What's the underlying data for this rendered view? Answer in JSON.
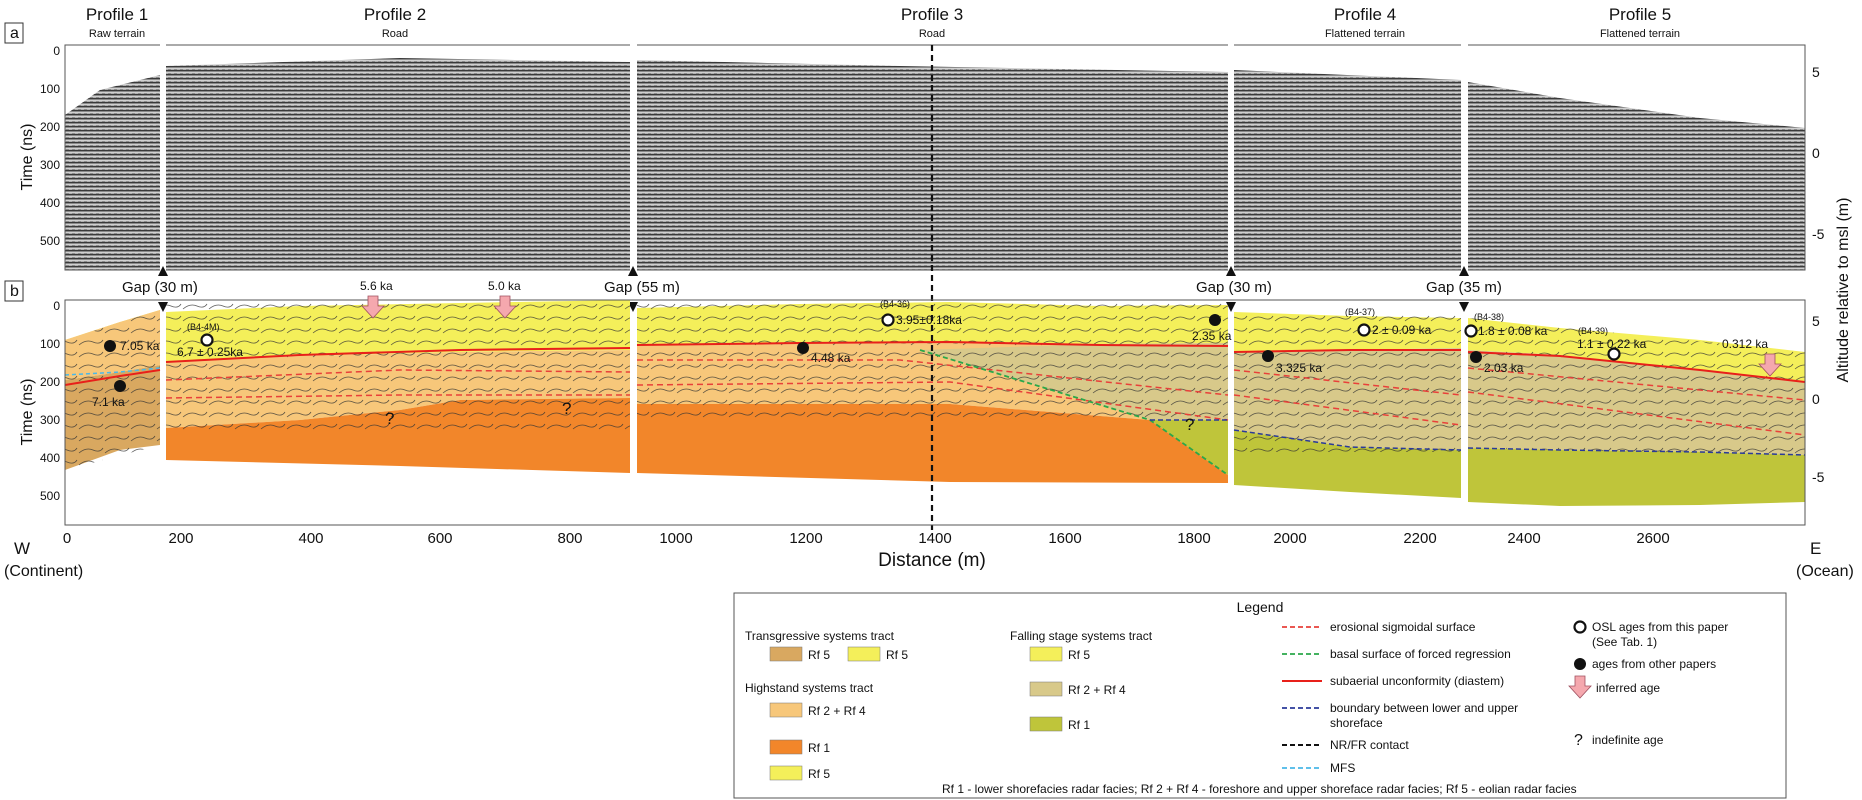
{
  "panel_labels": {
    "a": "a",
    "b": "b"
  },
  "profiles": [
    {
      "title": "Profile 1",
      "subtitle": "Raw terrain"
    },
    {
      "title": "Profile 2",
      "subtitle": "Road"
    },
    {
      "title": "Profile 3",
      "subtitle": "Road"
    },
    {
      "title": "Profile 4",
      "subtitle": "Flattened terrain"
    },
    {
      "title": "Profile 5",
      "subtitle": "Flattened terrain"
    }
  ],
  "gaps": [
    "Gap (30 m)",
    "Gap (55 m)",
    "Gap (30 m)",
    "Gap (35 m)"
  ],
  "axes": {
    "time_label": "Time (ns)",
    "altitude_label": "Altitude relative to msl (m)",
    "distance_label": "Distance (m)",
    "west_label": "W",
    "west_sub": "(Continent)",
    "east_label": "E",
    "east_sub": "(Ocean)",
    "time_ticks": [
      "0",
      "100",
      "200",
      "300",
      "400",
      "500"
    ],
    "alt_ticks": [
      "5",
      "0",
      "-5"
    ],
    "distance_ticks": [
      "0",
      "200",
      "400",
      "600",
      "800",
      "1000",
      "1200",
      "1400",
      "1600",
      "1800",
      "2000",
      "2200",
      "2400",
      "2600"
    ]
  },
  "ages": {
    "a1": "7.05 ka",
    "a2": "7.1 ka",
    "a3_id": "(B4-4M)",
    "a3": "6.7 ± 0.25ka",
    "a4": "5.6 ka",
    "a5": "5.0 ka",
    "a6": "4.48 ka",
    "a7_id": "(B4-36)",
    "a7": "3.95±0.18ka",
    "a8": "2.35 ka",
    "a9": "3.325 ka",
    "a10_id": "(B4-37)",
    "a10": "2 ± 0.09 ka",
    "a11_id": "(B4-38)",
    "a11": "1.8 ± 0.08 ka",
    "a12": "2.03 ka",
    "a13_id": "(B4-39)",
    "a13": "1.1 ± 0.22 ka",
    "a14": "0.312 ka",
    "q": "?"
  },
  "legend": {
    "title": "Legend",
    "tst": "Transgressive systems tract",
    "tst_rf5a": "Rf 5",
    "tst_rf5b": "Rf 5",
    "hst": "Highstand systems tract",
    "hst_rf24": "Rf 2 + Rf 4",
    "hst_rf1": "Rf 1",
    "hst_rf5": "Rf 5",
    "fsst": "Falling stage systems tract",
    "fsst_rf5": "Rf 5",
    "fsst_rf24": "Rf 2 + Rf 4",
    "fsst_rf1": "Rf 1",
    "l1": "erosional sigmoidal surface",
    "l2": "basal surface of forced regression",
    "l3": "subaerial unconformity (diastem)",
    "l4a": "boundary between lower and upper",
    "l4b": "shoreface",
    "l5": "NR/FR contact",
    "l6": "MFS",
    "s1a": "OSL ages from this paper",
    "s1b": "(See Tab. 1)",
    "s2": "ages from other papers",
    "s3": "inferred age",
    "s4": "indefinite age",
    "footer": "Rf 1 - lower shorefacies radar facies; Rf 2 + Rf 4 - foreshore and upper shoreface radar facies; Rf 5 - eolian radar facies"
  },
  "colors": {
    "tst_rf5_brown": "#d9a860",
    "rf5_yellow": "#f4ef5a",
    "hst_rf24": "#f7c77a",
    "rf1_orange": "#f2862a",
    "fsst_rf24": "#d8c98a",
    "fsst_rf1": "#bfc53a",
    "erosional": "#e8403a",
    "basal": "#2aa84a",
    "unconformity": "#e8201a",
    "boundary": "#2a3a9a",
    "nrfr": "#111111",
    "mfs": "#4ab8e8"
  }
}
